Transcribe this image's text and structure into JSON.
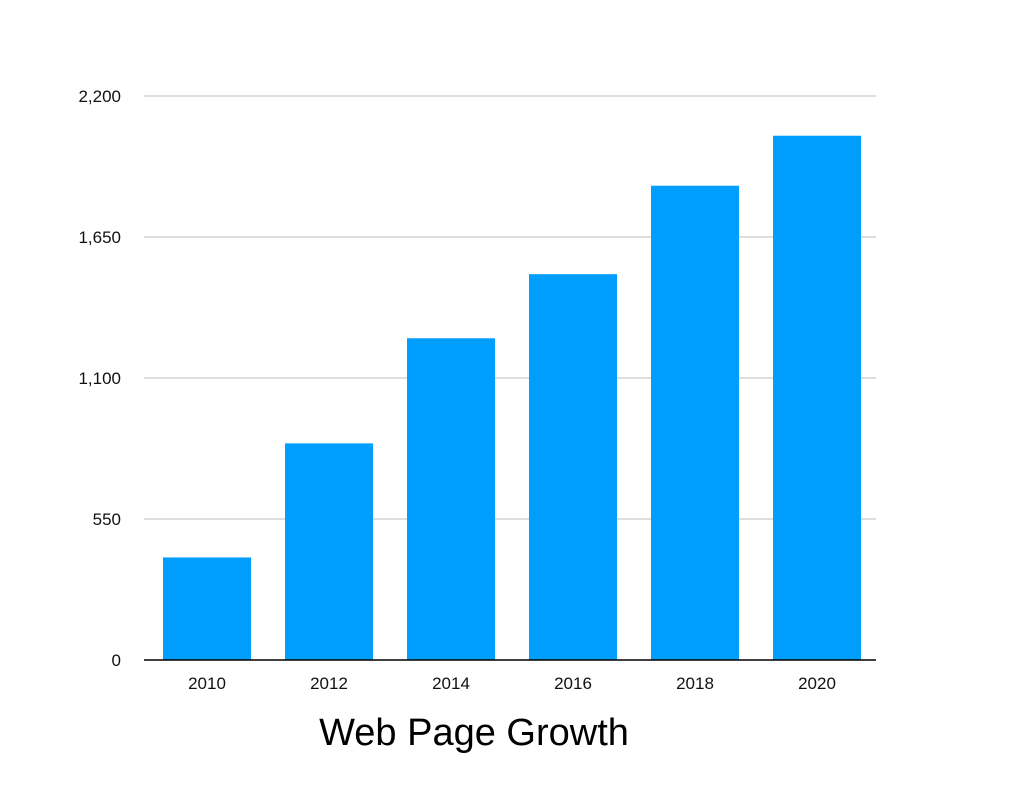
{
  "chart_data": {
    "type": "bar",
    "title": "Web Page Growth",
    "xlabel": "",
    "ylabel": "",
    "categories": [
      "2010",
      "2012",
      "2014",
      "2016",
      "2018",
      "2020"
    ],
    "values": [
      400,
      845,
      1255,
      1505,
      1850,
      2045
    ],
    "ylim": [
      0,
      2200
    ],
    "yticks": [
      0,
      550,
      1100,
      1650,
      2200
    ],
    "ytick_labels": [
      "0",
      "550",
      "1,100",
      "1,650",
      "2,200"
    ],
    "grid": true,
    "legend": "none",
    "colors": {
      "bar": "#009FFD",
      "grid": "#BDBDBD",
      "axis": "#000000"
    }
  }
}
